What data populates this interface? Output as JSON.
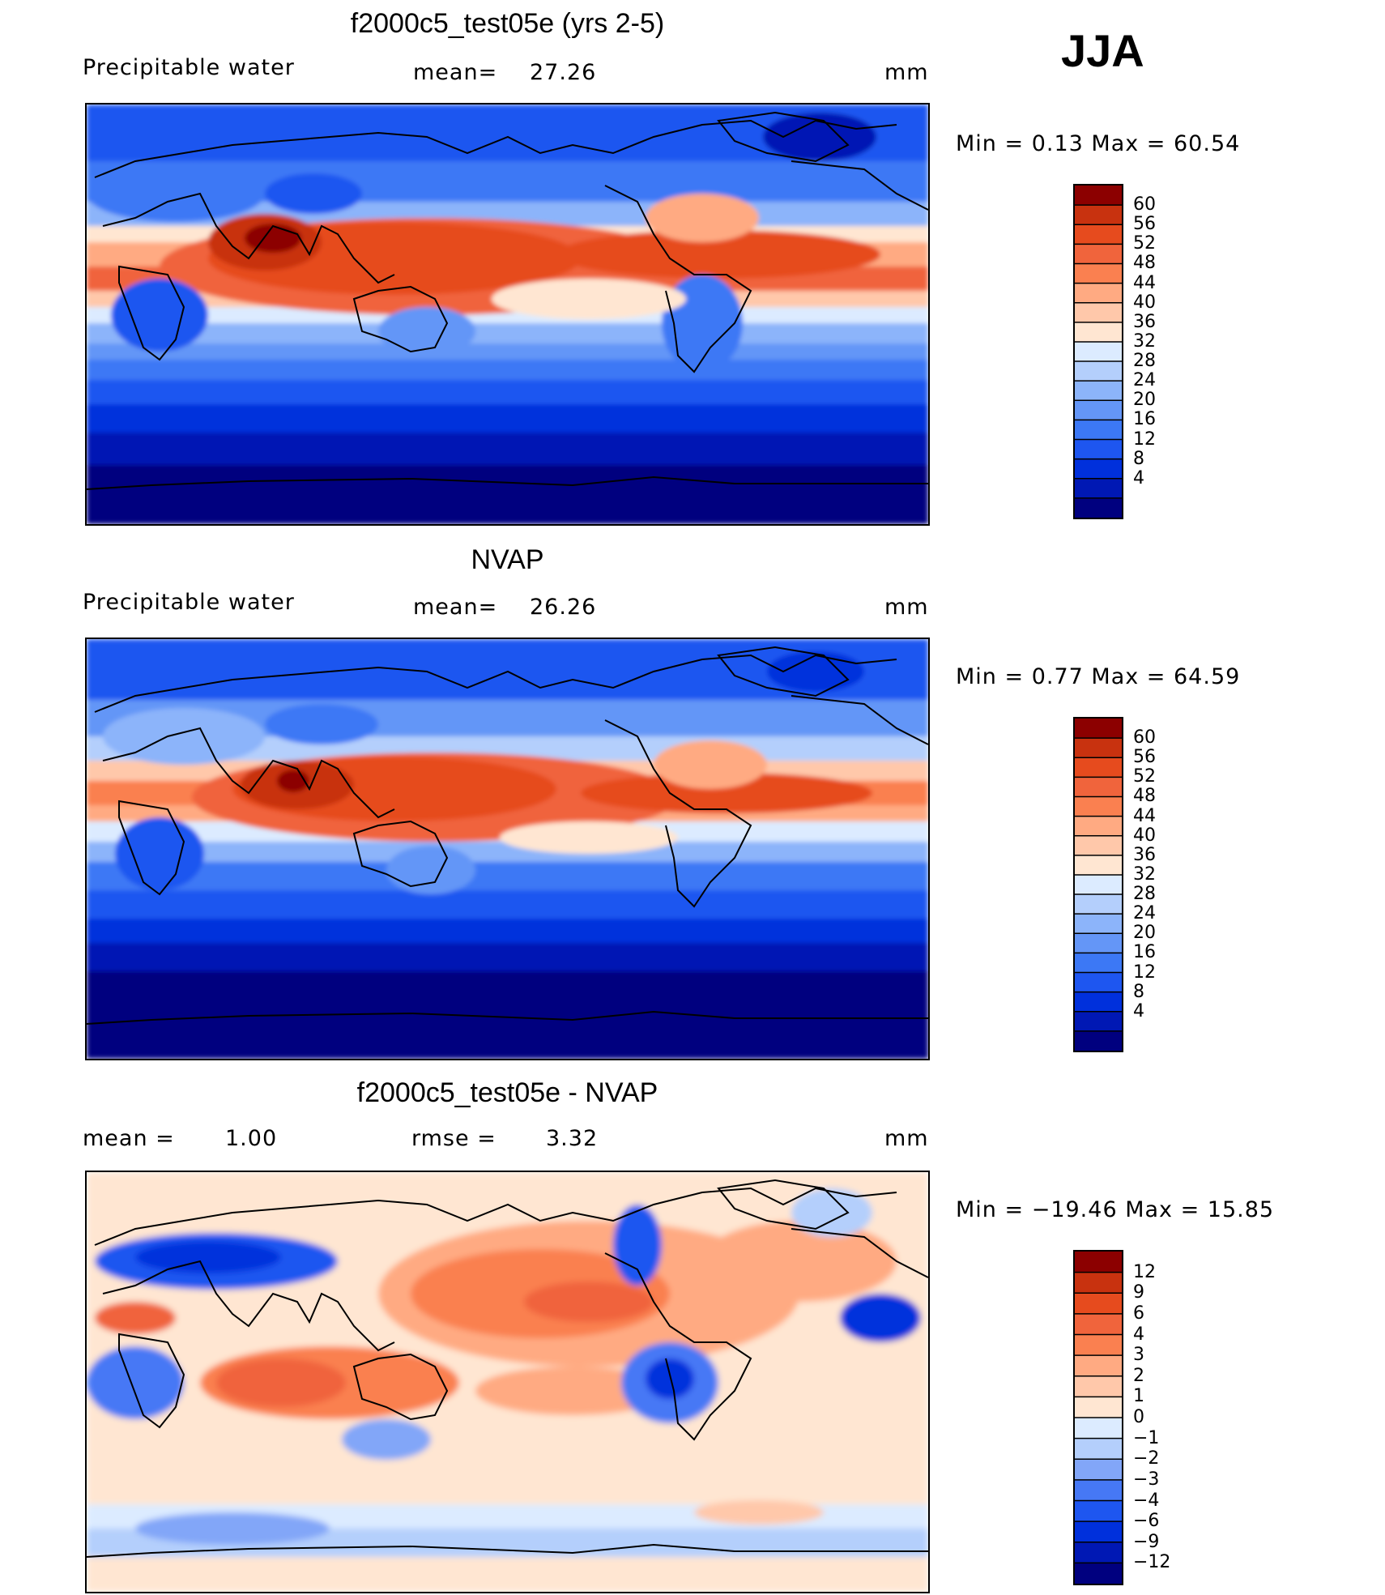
{
  "season": "JJA",
  "palette_model": [
    "#00007f",
    "#0018b4",
    "#0030dc",
    "#1e56f0",
    "#3c78f5",
    "#6496f7",
    "#8cb4fa",
    "#b4cffc",
    "#dcebff",
    "#ffe6d2",
    "#ffc8aa",
    "#ffaa82",
    "#fa8050",
    "#f0643c",
    "#e64b1e",
    "#c8320f",
    "#8c0000"
  ],
  "palette_diff": [
    "#00007f",
    "#0018b4",
    "#0030dc",
    "#1e56f0",
    "#4678f5",
    "#82a6f8",
    "#b4cffc",
    "#dcebff",
    "#ffe6d2",
    "#ffc8aa",
    "#ffaa82",
    "#fa8050",
    "#f0643c",
    "#e64b1e",
    "#c8320f",
    "#8c0000"
  ],
  "panels": [
    {
      "title": "f2000c5_test05e (yrs 2-5)",
      "left_label": "Precipitable  water",
      "stat_label": "mean=",
      "stat_value": "27.26",
      "units": "mm",
      "minmax": "Min  =     0.13  Max  =    60.54",
      "field_mean": 27.26,
      "field_min": 0.13,
      "field_max": 60.54,
      "colorbar_labels": [
        "60",
        "56",
        "52",
        "48",
        "44",
        "40",
        "36",
        "32",
        "28",
        "24",
        "20",
        "16",
        "12",
        "8",
        "4"
      ]
    },
    {
      "title": "NVAP",
      "left_label": "Precipitable  water",
      "stat_label": "mean=",
      "stat_value": "26.26",
      "units": "mm",
      "minmax": "Min  =     0.77  Max  =    64.59",
      "field_mean": 26.26,
      "field_min": 0.77,
      "field_max": 64.59,
      "colorbar_labels": [
        "60",
        "56",
        "52",
        "48",
        "44",
        "40",
        "36",
        "32",
        "28",
        "24",
        "20",
        "16",
        "12",
        "8",
        "4"
      ]
    },
    {
      "title": "f2000c5_test05e - NVAP",
      "left_label": "mean  =",
      "left_value": "1.00",
      "stat_label": "rmse  =",
      "stat_value": "3.32",
      "units": "mm",
      "minmax": "Min  = −19.46  Max  =    15.85",
      "field_mean": 1.0,
      "field_rmse": 3.32,
      "field_min": -19.46,
      "field_max": 15.85,
      "colorbar_labels": [
        "12",
        "9",
        "6",
        "4",
        "3",
        "2",
        "1",
        "0",
        "−1",
        "−2",
        "−3",
        "−4",
        "−6",
        "−9",
        "−12"
      ]
    }
  ]
}
